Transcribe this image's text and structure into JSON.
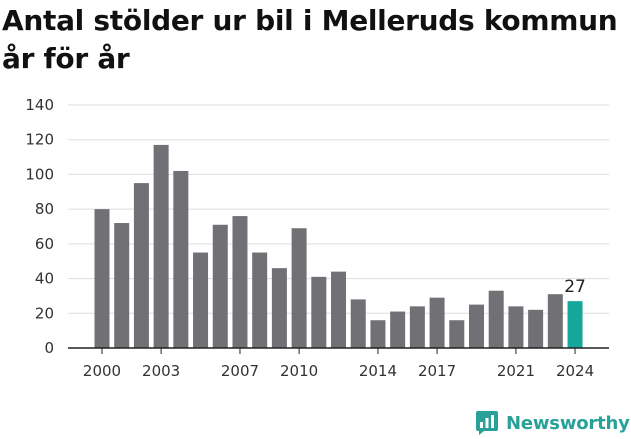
{
  "chart_data": {
    "type": "bar",
    "title": "Antal stölder ur bil i Melleruds kommun år för år",
    "xlabel": "",
    "ylabel": "",
    "ylim": [
      0,
      140
    ],
    "yticks": [
      0,
      20,
      40,
      60,
      80,
      100,
      120,
      140
    ],
    "xticks": [
      2000,
      2003,
      2007,
      2010,
      2014,
      2017,
      2021,
      2024
    ],
    "grid": true,
    "categories": [
      2000,
      2001,
      2002,
      2003,
      2004,
      2005,
      2006,
      2007,
      2008,
      2009,
      2010,
      2011,
      2012,
      2013,
      2014,
      2015,
      2016,
      2017,
      2018,
      2019,
      2020,
      2021,
      2022,
      2023,
      2024
    ],
    "values": [
      80,
      72,
      95,
      117,
      102,
      55,
      71,
      76,
      55,
      46,
      69,
      41,
      44,
      28,
      16,
      21,
      24,
      29,
      16,
      25,
      33,
      24,
      22,
      31,
      27
    ],
    "highlight": {
      "category": 2024,
      "label": "27"
    },
    "colors": {
      "bar": "#717074",
      "highlight": "#16a69a",
      "grid": "#dddddd",
      "axis": "#222222"
    }
  },
  "brand": {
    "name": "Newsworthy",
    "icon": "bar-chart-speech-icon",
    "color": "#2aa198"
  }
}
